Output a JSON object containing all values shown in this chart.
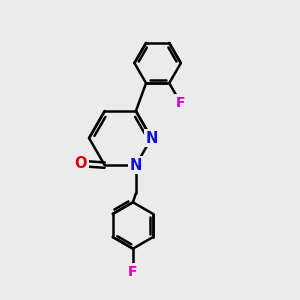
{
  "background_color": "#ebebeb",
  "bond_color": "#000000",
  "bond_width": 1.8,
  "atom_labels": {
    "N1": {
      "text": "N",
      "color": "#1010dd",
      "fontsize": 10.5,
      "fontweight": "bold"
    },
    "N2": {
      "text": "N",
      "color": "#1010dd",
      "fontsize": 10.5,
      "fontweight": "bold"
    },
    "O1": {
      "text": "O",
      "color": "#dd0000",
      "fontsize": 10.5,
      "fontweight": "bold"
    },
    "F1": {
      "text": "F",
      "color": "#cc00cc",
      "fontsize": 10,
      "fontweight": "bold"
    },
    "F2": {
      "text": "F",
      "color": "#cc00cc",
      "fontsize": 10,
      "fontweight": "bold"
    }
  },
  "figsize": [
    3.0,
    3.0
  ],
  "dpi": 100
}
